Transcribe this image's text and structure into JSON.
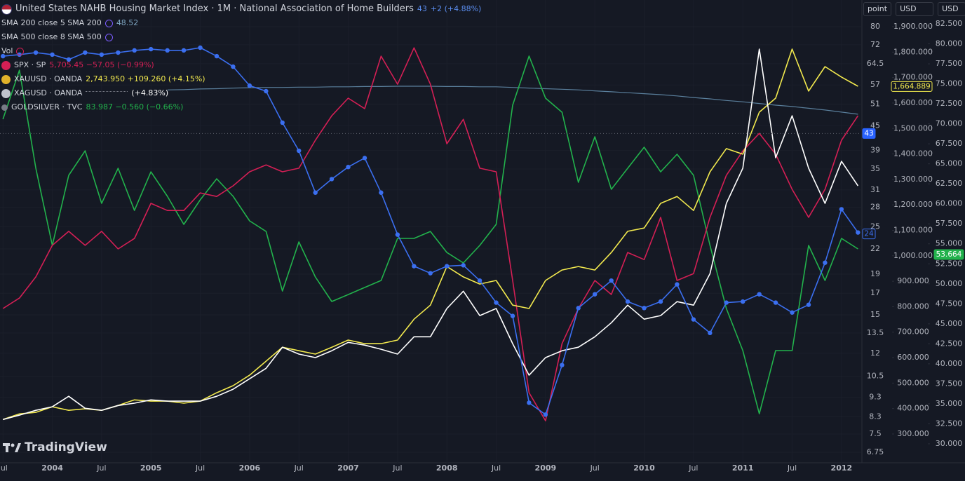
{
  "chart_data": {
    "type": "line",
    "extra_indicator": "SMA 500 close 8 SMA 500",
    "volume_label": "Vol",
    "watermark": "TradingView",
    "axis_units": [
      "point",
      "USD",
      "USD"
    ],
    "x": [
      2003.5,
      2003.667,
      2003.833,
      2004,
      2004.167,
      2004.333,
      2004.5,
      2004.667,
      2004.833,
      2005,
      2005.167,
      2005.333,
      2005.5,
      2005.667,
      2005.833,
      2006,
      2006.167,
      2006.333,
      2006.5,
      2006.667,
      2006.833,
      2007,
      2007.167,
      2007.333,
      2007.5,
      2007.667,
      2007.833,
      2008,
      2008.167,
      2008.333,
      2008.5,
      2008.667,
      2008.833,
      2009,
      2009.167,
      2009.333,
      2009.5,
      2009.667,
      2009.833,
      2010,
      2010.167,
      2010.333,
      2010.5,
      2010.667,
      2010.833,
      2011,
      2011.167,
      2011.333,
      2011.5,
      2011.667,
      2011.833,
      2012,
      2012.167
    ],
    "xlim": [
      2003.47,
      2012.2
    ],
    "xticks": [
      {
        "value": 2003.5,
        "label": "Jul"
      },
      2004,
      {
        "value": 2004.5,
        "label": "Jul"
      },
      2005,
      {
        "value": 2005.5,
        "label": "Jul"
      },
      2006,
      {
        "value": 2006.5,
        "label": "Jul"
      },
      2007,
      {
        "value": 2007.5,
        "label": "Jul"
      },
      2008,
      {
        "value": 2008.5,
        "label": "Jul"
      },
      2009,
      {
        "value": 2009.5,
        "label": "Jul"
      },
      2010,
      {
        "value": 2010.5,
        "label": "Jul"
      },
      2011,
      {
        "value": 2011.5,
        "label": "Jul"
      },
      2012
    ],
    "ylim": [
      6.35,
      93.4
    ],
    "log_scale": true,
    "yticks": [
      80,
      72,
      64.5,
      57,
      51,
      45,
      39,
      35,
      31,
      28,
      25,
      22,
      19,
      17,
      15,
      13.5,
      12,
      10.5,
      9.3,
      8.3,
      7.5,
      6.75
    ],
    "y2lim": [
      187,
      2004.7
    ],
    "y2ticks": [
      {
        "value": 1900,
        "label": "1,900.000"
      },
      {
        "value": 1800,
        "label": "1,800.000"
      },
      {
        "value": 1700,
        "label": "1,700.000"
      },
      {
        "value": 1600,
        "label": "1,600.000"
      },
      {
        "value": 1500,
        "label": "1,500.000"
      },
      {
        "value": 1400,
        "label": "1,400.000"
      },
      {
        "value": 1300,
        "label": "1,300.000"
      },
      {
        "value": 1200,
        "label": "1,200.000"
      },
      {
        "value": 1100,
        "label": "1,100.000"
      },
      {
        "value": 1000,
        "label": "1,000.000"
      },
      {
        "value": 900,
        "label": "900.000"
      },
      {
        "value": 800,
        "label": "800.000"
      },
      {
        "value": 700,
        "label": "700.000"
      },
      {
        "value": 600,
        "label": "600.000"
      },
      {
        "value": 500,
        "label": "500.000"
      },
      {
        "value": 400,
        "label": "400.000"
      },
      {
        "value": 300,
        "label": "300.000"
      }
    ],
    "y3lim": [
      27.63,
      85.48
    ],
    "y3ticks": [
      {
        "value": 82.5,
        "label": "82.500"
      },
      {
        "value": 80,
        "label": "80.000"
      },
      {
        "value": 77.5,
        "label": "77.500"
      },
      {
        "value": 75,
        "label": "75.000"
      },
      {
        "value": 72.5,
        "label": "72.500"
      },
      {
        "value": 70,
        "label": "70.000"
      },
      {
        "value": 67.5,
        "label": "67.500"
      },
      {
        "value": 65,
        "label": "65.000"
      },
      {
        "value": 62.5,
        "label": "62.500"
      },
      {
        "value": 60,
        "label": "60.000"
      },
      {
        "value": 57.5,
        "label": "57.500"
      },
      {
        "value": 55,
        "label": "55.000"
      },
      {
        "value": 52.5,
        "label": "52.500"
      },
      {
        "value": 50,
        "label": "50.000"
      },
      {
        "value": 47.5,
        "label": "47.500"
      },
      {
        "value": 45,
        "label": "45.000"
      },
      {
        "value": 42.5,
        "label": "42.500"
      },
      {
        "value": 40,
        "label": "40.000"
      },
      {
        "value": 37.5,
        "label": "37.500"
      },
      {
        "value": 35,
        "label": "35.000"
      },
      {
        "value": 32.5,
        "label": "32.500"
      },
      {
        "value": 30,
        "label": "30.000"
      }
    ],
    "series": [
      {
        "name": "United States NAHB Housing Market Index · 1M · National Association of Home Builders",
        "legend_value": "43",
        "legend_change": "+2 (+4.88%)",
        "color": "#3b6ff0",
        "axis": "y",
        "markers": true,
        "values": [
          67.4,
          68.0,
          68.8,
          68.0,
          66.1,
          68.8,
          68.0,
          68.8,
          69.7,
          70.2,
          69.7,
          69.7,
          70.8,
          67.4,
          63.4,
          56.8,
          55.0,
          45.8,
          38.9,
          30.5,
          33.0,
          35.4,
          37.3,
          30.5,
          23.9,
          19.9,
          19.1,
          19.9,
          20.0,
          18.3,
          16.1,
          14.9,
          9.0,
          8.4,
          11.2,
          15.6,
          16.9,
          18.3,
          16.2,
          15.6,
          16.2,
          17.9,
          14.6,
          13.5,
          16.1,
          16.2,
          16.9,
          16.1,
          15.2,
          15.9,
          20.3,
          27.7,
          24.2
        ]
      },
      {
        "name": "SPX · SP",
        "legend_value": "5,705.45 −57.05 (−0.99%)",
        "color": "#d41f55",
        "axis": "y2",
        "values": [
          793,
          834,
          917,
          1041,
          1096,
          1041,
          1096,
          1027,
          1068,
          1206,
          1178,
          1178,
          1247,
          1233,
          1275,
          1330,
          1357,
          1330,
          1344,
          1454,
          1550,
          1619,
          1578,
          1784,
          1674,
          1817,
          1674,
          1440,
          1536,
          1344,
          1330,
          903,
          462,
          352,
          655,
          793,
          903,
          848,
          1013,
          985,
          1151,
          903,
          930,
          1151,
          1316,
          1412,
          1481,
          1399,
          1261,
          1151,
          1261,
          1454,
          1550
        ]
      },
      {
        "name": "XAUUSD · OANDA",
        "legend_value": "2,743.950 +109.260 (+4.15%)",
        "color": "#f2e94e",
        "axis": "y2",
        "values": [
          357,
          379,
          385,
          407,
          393,
          399,
          393,
          412,
          434,
          429,
          429,
          421,
          429,
          462,
          490,
          531,
          586,
          641,
          627,
          614,
          641,
          669,
          655,
          655,
          669,
          751,
          806,
          958,
          917,
          889,
          903,
          806,
          793,
          903,
          944,
          958,
          944,
          1013,
          1096,
          1109,
          1206,
          1233,
          1178,
          1330,
          1421,
          1399,
          1564,
          1619,
          1812,
          1647,
          1743,
          1702,
          1666
        ]
      },
      {
        "name": "XAGUSD · OANDA",
        "legend_value": "(+4.83%)",
        "color": "#ffffff",
        "axis": "y2",
        "values": [
          357,
          374,
          393,
          407,
          448,
          401,
          393,
          412,
          421,
          434,
          429,
          429,
          429,
          448,
          476,
          517,
          558,
          641,
          614,
          600,
          627,
          660,
          649,
          633,
          614,
          682,
          682,
          793,
          861,
          765,
          793,
          655,
          531,
          600,
          627,
          641,
          682,
          737,
          806,
          751,
          765,
          820,
          806,
          930,
          1206,
          1344,
          1812,
          1385,
          1550,
          1344,
          1206,
          1371,
          1275
        ]
      },
      {
        "name": "GOLDSILVER · TVC",
        "legend_value": "83.987 −0.560 (−0.66%)",
        "color": "#22b24c",
        "axis": "y3",
        "values": [
          70.58,
          76.71,
          64.44,
          54.8,
          63.57,
          66.63,
          60.06,
          64.44,
          59.18,
          64.0,
          60.94,
          57.43,
          60.5,
          63.13,
          60.94,
          57.87,
          56.55,
          49.1,
          55.24,
          50.85,
          47.79,
          48.66,
          49.54,
          50.42,
          55.68,
          55.68,
          56.55,
          53.92,
          52.61,
          54.8,
          57.43,
          72.33,
          78.47,
          73.21,
          71.45,
          62.69,
          68.39,
          61.81,
          64.44,
          67.07,
          64.0,
          66.2,
          63.57,
          54.8,
          46.91,
          41.65,
          33.76,
          41.65,
          41.65,
          54.8,
          50.42,
          55.68,
          54.36
        ]
      },
      {
        "name": "SMA 200 close 5 SMA 200",
        "legend_value": "48.52",
        "color": "#5a7f9c",
        "axis": "y",
        "values": [
          null,
          null,
          null,
          null,
          null,
          null,
          null,
          null,
          null,
          null,
          55.4,
          55.5,
          55.7,
          55.8,
          56.0,
          56.1,
          56.2,
          56.2,
          56.3,
          56.3,
          56.4,
          56.4,
          56.5,
          56.5,
          56.6,
          56.6,
          56.6,
          56.5,
          56.5,
          56.4,
          56.4,
          56.2,
          56.0,
          55.8,
          55.6,
          55.4,
          55.1,
          54.8,
          54.5,
          54.2,
          53.9,
          53.5,
          53.0,
          52.6,
          52.1,
          51.7,
          51.2,
          50.7,
          50.3,
          49.8,
          49.3,
          48.7,
          48.1
        ]
      }
    ],
    "price_tags": [
      {
        "value": 43,
        "label": "43",
        "axis": "y",
        "color": "#2962ff",
        "filled": true,
        "line": true
      },
      {
        "value": 24,
        "label": "24",
        "axis": "y",
        "color": "#3b6ff0",
        "filled": false
      },
      {
        "value": 1664.889,
        "label": "1,664.889",
        "axis": "y2",
        "color": "#f2e94e",
        "filled": false
      },
      {
        "value": 53.664,
        "label": "53.664",
        "axis": "y3",
        "color": "#22b24c",
        "filled": true
      }
    ]
  }
}
